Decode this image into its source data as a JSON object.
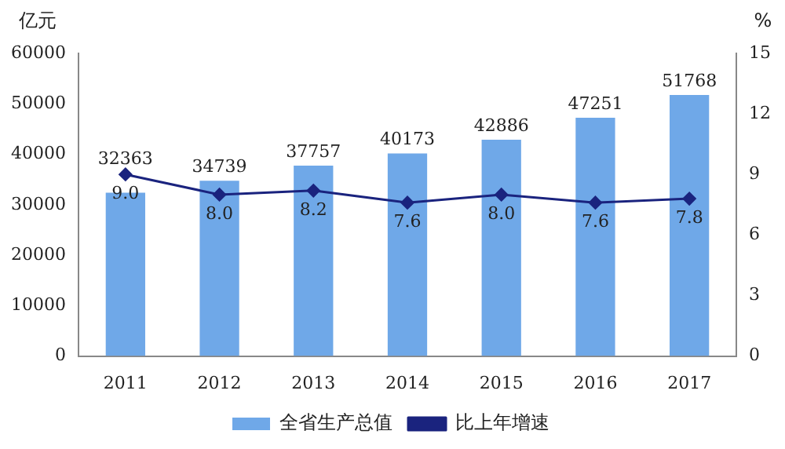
{
  "chart_data": {
    "type": "bar",
    "categories": [
      "2011",
      "2012",
      "2013",
      "2014",
      "2015",
      "2016",
      "2017"
    ],
    "ylabel": "亿元",
    "y2label": "%",
    "ylim": [
      0,
      60000
    ],
    "yticks": [
      0,
      10000,
      20000,
      30000,
      40000,
      50000,
      60000
    ],
    "y2lim": [
      0,
      15
    ],
    "y2ticks": [
      0,
      3,
      6,
      9,
      12,
      15
    ],
    "series": [
      {
        "name": "全省生产总值",
        "color": "#6fa8e8",
        "values": [
          32363,
          34739,
          37757,
          40173,
          42886,
          47251,
          51768
        ]
      },
      {
        "name": "比上年增速",
        "type": "line",
        "axis": "y2",
        "color": "#1a237e",
        "values": [
          9.0,
          8.0,
          8.2,
          7.6,
          8.0,
          7.6,
          7.8
        ],
        "value_labels": [
          "9.0",
          "8.0",
          "8.2",
          "7.6",
          "8.0",
          "7.6",
          "7.8"
        ]
      }
    ],
    "data_labels": true,
    "legend": "bottom",
    "grid": false,
    "marker": "diamond",
    "line_style": "solid"
  }
}
